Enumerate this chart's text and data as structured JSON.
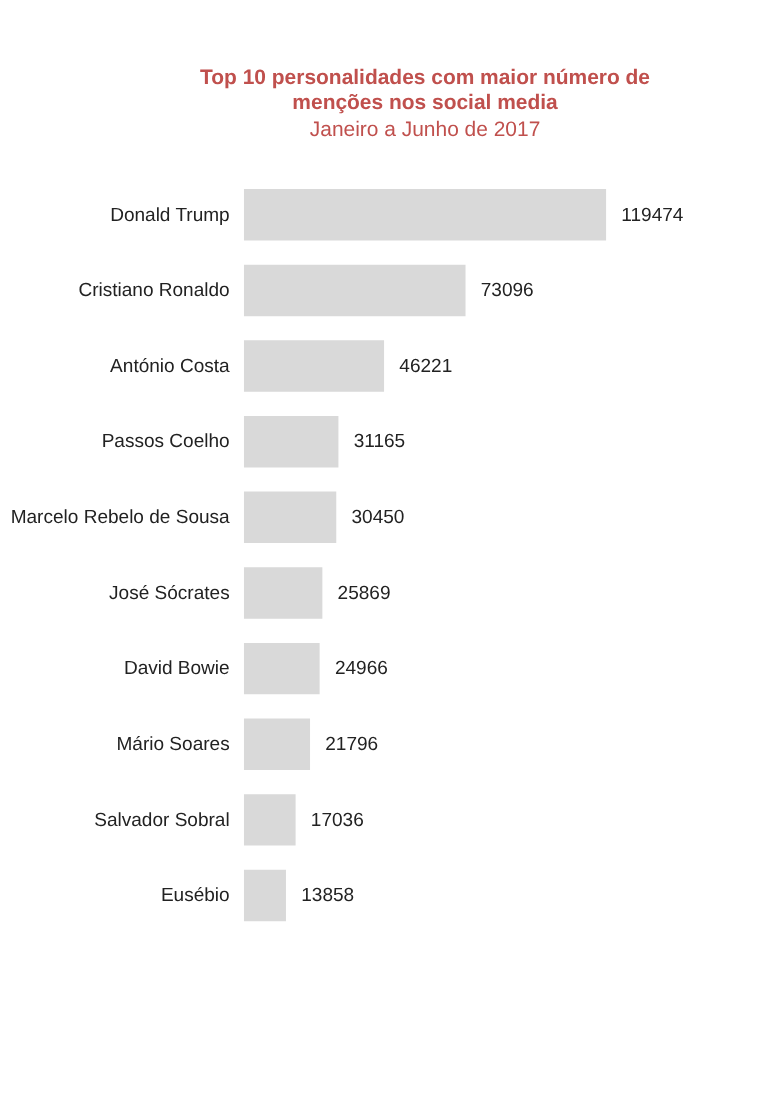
{
  "chart_data": {
    "type": "bar",
    "orientation": "horizontal",
    "title": "Top 10 personalidades  com maior número de menções nos social media",
    "subtitle": "Janeiro a Junho de 2017",
    "categories": [
      "Donald Trump",
      "Cristiano Ronaldo",
      "António Costa",
      "Passos Coelho",
      "Marcelo Rebelo de Sousa",
      "José Sócrates",
      "David Bowie",
      "Mário Soares",
      "Salvador Sobral",
      "Eusébio"
    ],
    "values": [
      119474,
      73096,
      46221,
      31165,
      30450,
      25869,
      24966,
      21796,
      17036,
      13858
    ],
    "color": "#d9d9d9",
    "data_labels": true
  }
}
